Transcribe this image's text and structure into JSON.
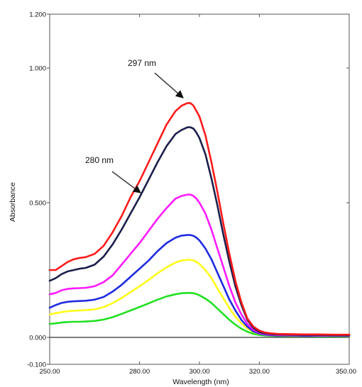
{
  "chart_data": {
    "type": "line",
    "title": "",
    "xlabel": "Wavelength (nm)",
    "ylabel": "Absorbance",
    "xlim": [
      250,
      350
    ],
    "ylim": [
      -0.1,
      1.2
    ],
    "xticks": [
      {
        "value": 250,
        "label": "250.00"
      },
      {
        "value": 280,
        "label": "280.00"
      },
      {
        "value": 300,
        "label": "300.00"
      },
      {
        "value": 320,
        "label": "320.00"
      },
      {
        "value": 350,
        "label": "350.00"
      }
    ],
    "yticks": [
      {
        "value": -0.1,
        "label": "-0.100"
      },
      {
        "value": 0.0,
        "label": "0.000"
      },
      {
        "value": 0.5,
        "label": "0.500"
      },
      {
        "value": 1.0,
        "label": "1.000"
      },
      {
        "value": 1.2,
        "label": "1.200"
      }
    ],
    "grid": false,
    "annotations": [
      {
        "text": "297 nm",
        "x": 297,
        "y": 0.86
      },
      {
        "text": "280 nm",
        "x": 280,
        "y": 0.54
      }
    ],
    "series": [
      {
        "color": "#ff1a1a",
        "x": [
          250,
          252,
          254,
          256,
          258,
          260,
          262,
          265,
          268,
          271,
          274,
          277,
          280,
          283,
          286,
          289,
          292,
          294,
          296,
          297,
          298,
          299,
          300,
          302,
          304,
          306,
          308,
          310,
          312,
          314,
          316,
          318,
          320,
          322,
          324,
          326,
          330,
          335,
          340,
          345,
          350
        ],
        "y": [
          0.25,
          0.25,
          0.265,
          0.28,
          0.29,
          0.295,
          0.298,
          0.31,
          0.34,
          0.39,
          0.45,
          0.52,
          0.58,
          0.65,
          0.72,
          0.79,
          0.84,
          0.86,
          0.87,
          0.87,
          0.86,
          0.84,
          0.82,
          0.75,
          0.65,
          0.54,
          0.42,
          0.31,
          0.21,
          0.13,
          0.07,
          0.04,
          0.025,
          0.018,
          0.015,
          0.013,
          0.012,
          0.011,
          0.011,
          0.01,
          0.01
        ]
      },
      {
        "color": "#1c1f4a",
        "x": [
          250,
          252,
          254,
          256,
          258,
          260,
          262,
          265,
          268,
          271,
          274,
          277,
          280,
          283,
          286,
          289,
          292,
          294,
          296,
          297,
          298,
          299,
          300,
          302,
          304,
          306,
          308,
          310,
          312,
          314,
          316,
          318,
          320,
          322,
          324,
          326,
          330,
          335,
          340,
          345,
          350
        ],
        "y": [
          0.21,
          0.22,
          0.235,
          0.245,
          0.25,
          0.255,
          0.258,
          0.27,
          0.3,
          0.345,
          0.4,
          0.46,
          0.52,
          0.585,
          0.65,
          0.71,
          0.755,
          0.77,
          0.78,
          0.78,
          0.775,
          0.76,
          0.74,
          0.68,
          0.59,
          0.49,
          0.38,
          0.28,
          0.19,
          0.12,
          0.065,
          0.035,
          0.02,
          0.015,
          0.012,
          0.011,
          0.01,
          0.009,
          0.009,
          0.008,
          0.008
        ]
      },
      {
        "color": "#ff1aff",
        "x": [
          250,
          252,
          254,
          256,
          258,
          260,
          262,
          265,
          268,
          271,
          274,
          277,
          280,
          283,
          286,
          289,
          292,
          294,
          296,
          297,
          298,
          299,
          300,
          302,
          304,
          306,
          308,
          310,
          312,
          314,
          316,
          318,
          320,
          322,
          324,
          326,
          330,
          335,
          340,
          345,
          350
        ],
        "y": [
          0.16,
          0.165,
          0.175,
          0.18,
          0.182,
          0.183,
          0.184,
          0.19,
          0.205,
          0.23,
          0.27,
          0.31,
          0.35,
          0.395,
          0.44,
          0.48,
          0.515,
          0.525,
          0.53,
          0.53,
          0.525,
          0.515,
          0.5,
          0.46,
          0.4,
          0.33,
          0.26,
          0.19,
          0.13,
          0.085,
          0.05,
          0.028,
          0.017,
          0.012,
          0.01,
          0.009,
          0.008,
          0.008,
          0.007,
          0.007,
          0.007
        ]
      },
      {
        "color": "#1f2be0",
        "x": [
          250,
          252,
          254,
          256,
          258,
          260,
          262,
          265,
          268,
          271,
          274,
          277,
          280,
          283,
          286,
          289,
          292,
          294,
          296,
          297,
          298,
          299,
          300,
          302,
          304,
          306,
          308,
          310,
          312,
          314,
          316,
          318,
          320,
          322,
          324,
          326,
          330,
          335,
          340,
          345,
          350
        ],
        "y": [
          0.11,
          0.12,
          0.128,
          0.132,
          0.134,
          0.135,
          0.136,
          0.14,
          0.15,
          0.17,
          0.195,
          0.225,
          0.255,
          0.285,
          0.32,
          0.35,
          0.37,
          0.378,
          0.38,
          0.38,
          0.377,
          0.37,
          0.36,
          0.33,
          0.29,
          0.24,
          0.19,
          0.14,
          0.1,
          0.065,
          0.04,
          0.022,
          0.014,
          0.01,
          0.008,
          0.007,
          0.007,
          0.006,
          0.006,
          0.006,
          0.006
        ]
      },
      {
        "color": "#ffff1a",
        "x": [
          250,
          252,
          254,
          256,
          258,
          260,
          262,
          265,
          268,
          271,
          274,
          277,
          280,
          283,
          286,
          289,
          292,
          294,
          296,
          297,
          298,
          299,
          300,
          302,
          304,
          306,
          308,
          310,
          312,
          314,
          316,
          318,
          320,
          322,
          324,
          326,
          330,
          335,
          340,
          345,
          350
        ],
        "y": [
          0.085,
          0.09,
          0.094,
          0.097,
          0.099,
          0.1,
          0.101,
          0.104,
          0.112,
          0.127,
          0.146,
          0.168,
          0.19,
          0.213,
          0.238,
          0.26,
          0.278,
          0.285,
          0.288,
          0.288,
          0.286,
          0.28,
          0.272,
          0.25,
          0.22,
          0.182,
          0.145,
          0.108,
          0.077,
          0.052,
          0.033,
          0.02,
          0.013,
          0.01,
          0.008,
          0.007,
          0.007,
          0.006,
          0.006,
          0.006,
          0.006
        ]
      },
      {
        "color": "#22e022",
        "x": [
          250,
          252,
          254,
          256,
          258,
          260,
          262,
          265,
          268,
          271,
          274,
          277,
          280,
          283,
          286,
          289,
          292,
          294,
          296,
          297,
          298,
          299,
          300,
          302,
          304,
          306,
          308,
          310,
          312,
          314,
          316,
          318,
          320,
          322,
          324,
          326,
          330,
          335,
          340,
          345,
          350
        ],
        "y": [
          0.05,
          0.052,
          0.055,
          0.057,
          0.058,
          0.058,
          0.059,
          0.061,
          0.066,
          0.075,
          0.087,
          0.1,
          0.113,
          0.126,
          0.14,
          0.152,
          0.16,
          0.164,
          0.165,
          0.165,
          0.164,
          0.161,
          0.156,
          0.144,
          0.128,
          0.107,
          0.086,
          0.065,
          0.047,
          0.032,
          0.021,
          0.013,
          0.009,
          0.007,
          0.006,
          0.005,
          0.005,
          0.005,
          0.004,
          0.004,
          0.004
        ]
      },
      {
        "color": "#333333",
        "x": [
          250,
          350
        ],
        "y": [
          0.0,
          0.0
        ]
      }
    ]
  }
}
